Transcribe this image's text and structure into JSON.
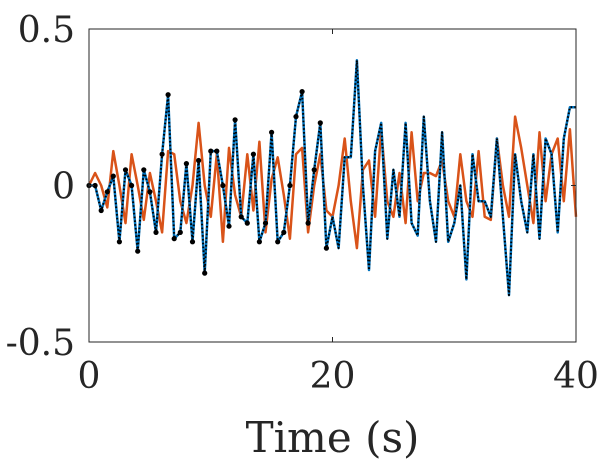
{
  "chart_data": {
    "type": "line",
    "title": "",
    "xlabel": "Time (s)",
    "ylabel": "",
    "xlim": [
      0,
      40
    ],
    "ylim": [
      -0.5,
      0.5
    ],
    "xticks": [
      0,
      20,
      40
    ],
    "xtick_labels": [
      "0",
      "20",
      "40"
    ],
    "yticks": [
      -0.5,
      0,
      0.5
    ],
    "ytick_labels": [
      "-0.5",
      "0",
      "0.5"
    ],
    "grid": false,
    "legend": "none",
    "series": [
      {
        "color": "#D95319",
        "style": "solid",
        "x": [
          0,
          0.5,
          1,
          1.5,
          2,
          2.5,
          3,
          3.5,
          4,
          4.5,
          5,
          5.5,
          6,
          6.5,
          7,
          7.5,
          8,
          8.5,
          9,
          9.5,
          10,
          10.5,
          11,
          11.5,
          12,
          12.5,
          13,
          13.5,
          14,
          14.5,
          15,
          15.5,
          16,
          16.5,
          17,
          17.5,
          18,
          18.5,
          19,
          19.5,
          20,
          20.5,
          21,
          21.5,
          22,
          22.5,
          23,
          23.5,
          24,
          24.5,
          25,
          25.5,
          26,
          26.5,
          27,
          27.5,
          28,
          28.5,
          29,
          29.5,
          30,
          30.5,
          31,
          31.5,
          32,
          32.5,
          33,
          33.5,
          34,
          34.5,
          35,
          35.5,
          36,
          36.5,
          37,
          37.5,
          38,
          38.5,
          39,
          39.5,
          40
        ],
        "values": [
          0.0,
          0.04,
          0.0,
          -0.07,
          0.11,
          0.0,
          -0.12,
          0.1,
          0.0,
          -0.11,
          0.04,
          -0.05,
          -0.15,
          0.11,
          0.1,
          -0.05,
          -0.12,
          0.0,
          0.2,
          0.0,
          -0.1,
          0.1,
          -0.18,
          0.12,
          -0.03,
          -0.1,
          0.1,
          -0.08,
          0.14,
          -0.15,
          0.02,
          0.09,
          -0.03,
          -0.17,
          0.1,
          0.12,
          -0.15,
          0.0,
          0.1,
          -0.08,
          -0.1,
          0.0,
          0.15,
          -0.05,
          -0.2,
          0.05,
          0.08,
          -0.1,
          0.18,
          -0.05,
          -0.1,
          0.04,
          -0.12,
          0.17,
          -0.05,
          0.04,
          0.04,
          0.03,
          0.08,
          -0.05,
          -0.1,
          0.1,
          -0.05,
          -0.1,
          0.11,
          -0.1,
          -0.11,
          0.15,
          0.0,
          -0.1,
          0.22,
          0.12,
          0.0,
          -0.12,
          0.17,
          -0.05,
          0.1,
          0.15,
          -0.05,
          0.18,
          -0.1
        ]
      },
      {
        "color": "#0072BD",
        "style": "solid",
        "x": [
          0,
          0.5,
          1,
          1.5,
          2,
          2.5,
          3,
          3.5,
          4,
          4.5,
          5,
          5.5,
          6,
          6.5,
          7,
          7.5,
          8,
          8.5,
          9,
          9.5,
          10,
          10.5,
          11,
          11.5,
          12,
          12.5,
          13,
          13.5,
          14,
          14.5,
          15,
          15.5,
          16,
          16.5,
          17,
          17.5,
          18,
          18.5,
          19,
          19.5,
          20,
          20.5,
          21,
          21.5,
          22,
          22.5,
          23,
          23.5,
          24,
          24.5,
          25,
          25.5,
          26,
          26.5,
          27,
          27.5,
          28,
          28.5,
          29,
          29.5,
          30,
          30.5,
          31,
          31.5,
          32,
          32.5,
          33,
          33.5,
          34,
          34.5,
          35,
          35.5,
          36,
          36.5,
          37,
          37.5,
          38,
          38.5,
          39,
          39.5,
          40
        ],
        "values": [
          0.0,
          0.0,
          -0.08,
          -0.02,
          0.03,
          -0.18,
          0.05,
          0.0,
          -0.21,
          0.05,
          -0.02,
          -0.15,
          0.1,
          0.29,
          -0.17,
          -0.15,
          0.07,
          -0.18,
          0.08,
          -0.28,
          0.11,
          0.11,
          0.0,
          -0.13,
          0.21,
          -0.1,
          -0.12,
          0.1,
          -0.18,
          -0.12,
          0.17,
          -0.18,
          -0.15,
          0.0,
          0.22,
          0.3,
          -0.12,
          0.05,
          0.2,
          -0.2,
          -0.1,
          -0.2,
          0.09,
          0.09,
          0.4,
          0.0,
          -0.27,
          0.11,
          0.2,
          -0.17,
          0.05,
          -0.1,
          0.2,
          -0.12,
          -0.16,
          0.22,
          -0.05,
          -0.18,
          0.17,
          -0.18,
          -0.12,
          0.0,
          -0.3,
          0.1,
          -0.05,
          -0.05,
          -0.1,
          0.15,
          -0.1,
          -0.35,
          0.1,
          -0.05,
          -0.15,
          0.1,
          -0.17,
          0.15,
          0.1,
          -0.15,
          0.15,
          0.25,
          0.25
        ]
      },
      {
        "color": "#000000",
        "style": "dotted-with-markers",
        "x": [
          0,
          0.5,
          1,
          1.5,
          2,
          2.5,
          3,
          3.5,
          4,
          4.5,
          5,
          5.5,
          6,
          6.5,
          7,
          7.5,
          8,
          8.5,
          9,
          9.5,
          10,
          10.5,
          11,
          11.5,
          12,
          12.5,
          13,
          13.5,
          14,
          14.5,
          15,
          15.5,
          16,
          16.5,
          17,
          17.5,
          18,
          18.5,
          19,
          19.5,
          20,
          20.5,
          21,
          21.5,
          22,
          22.5,
          23,
          23.5,
          24,
          24.5,
          25,
          25.5,
          26,
          26.5,
          27,
          27.5,
          28,
          28.5,
          29,
          29.5,
          30,
          30.5,
          31,
          31.5,
          32,
          32.5,
          33,
          33.5,
          34,
          34.5,
          35,
          35.5,
          36,
          36.5,
          37,
          37.5,
          38,
          38.5,
          39,
          39.5,
          40
        ],
        "values": [
          0.0,
          0.0,
          -0.08,
          -0.02,
          0.03,
          -0.18,
          0.05,
          0.0,
          -0.21,
          0.05,
          -0.02,
          -0.15,
          0.1,
          0.29,
          -0.17,
          -0.15,
          0.07,
          -0.18,
          0.08,
          -0.28,
          0.11,
          0.11,
          0.0,
          -0.13,
          0.21,
          -0.1,
          -0.12,
          0.1,
          -0.18,
          -0.12,
          0.17,
          -0.18,
          -0.15,
          0.0,
          0.22,
          0.3,
          -0.12,
          0.05,
          0.2,
          -0.2,
          -0.1,
          -0.2,
          0.09,
          0.09,
          0.4,
          0.0,
          -0.27,
          0.11,
          0.2,
          -0.17,
          0.05,
          -0.1,
          0.2,
          -0.12,
          -0.16,
          0.22,
          -0.05,
          -0.18,
          0.17,
          -0.18,
          -0.12,
          0.0,
          -0.3,
          0.1,
          -0.05,
          -0.05,
          -0.1,
          0.15,
          -0.1,
          -0.35,
          0.1,
          -0.05,
          -0.15,
          0.1,
          -0.17,
          0.15,
          0.1,
          -0.15,
          0.15,
          0.25,
          0.25
        ],
        "marker_x": [
          0,
          0.5,
          1,
          1.5,
          2,
          2.5,
          3,
          3.5,
          4,
          4.5,
          5,
          5.5,
          6,
          6.5,
          7,
          7.5,
          8,
          8.5,
          9,
          9.5,
          10,
          10.5,
          11,
          11.5,
          12,
          12.5,
          13,
          13.5,
          14,
          14.5,
          15,
          15.5,
          16,
          16.5,
          17,
          17.5,
          18,
          18.5,
          19,
          19.5
        ]
      }
    ]
  }
}
